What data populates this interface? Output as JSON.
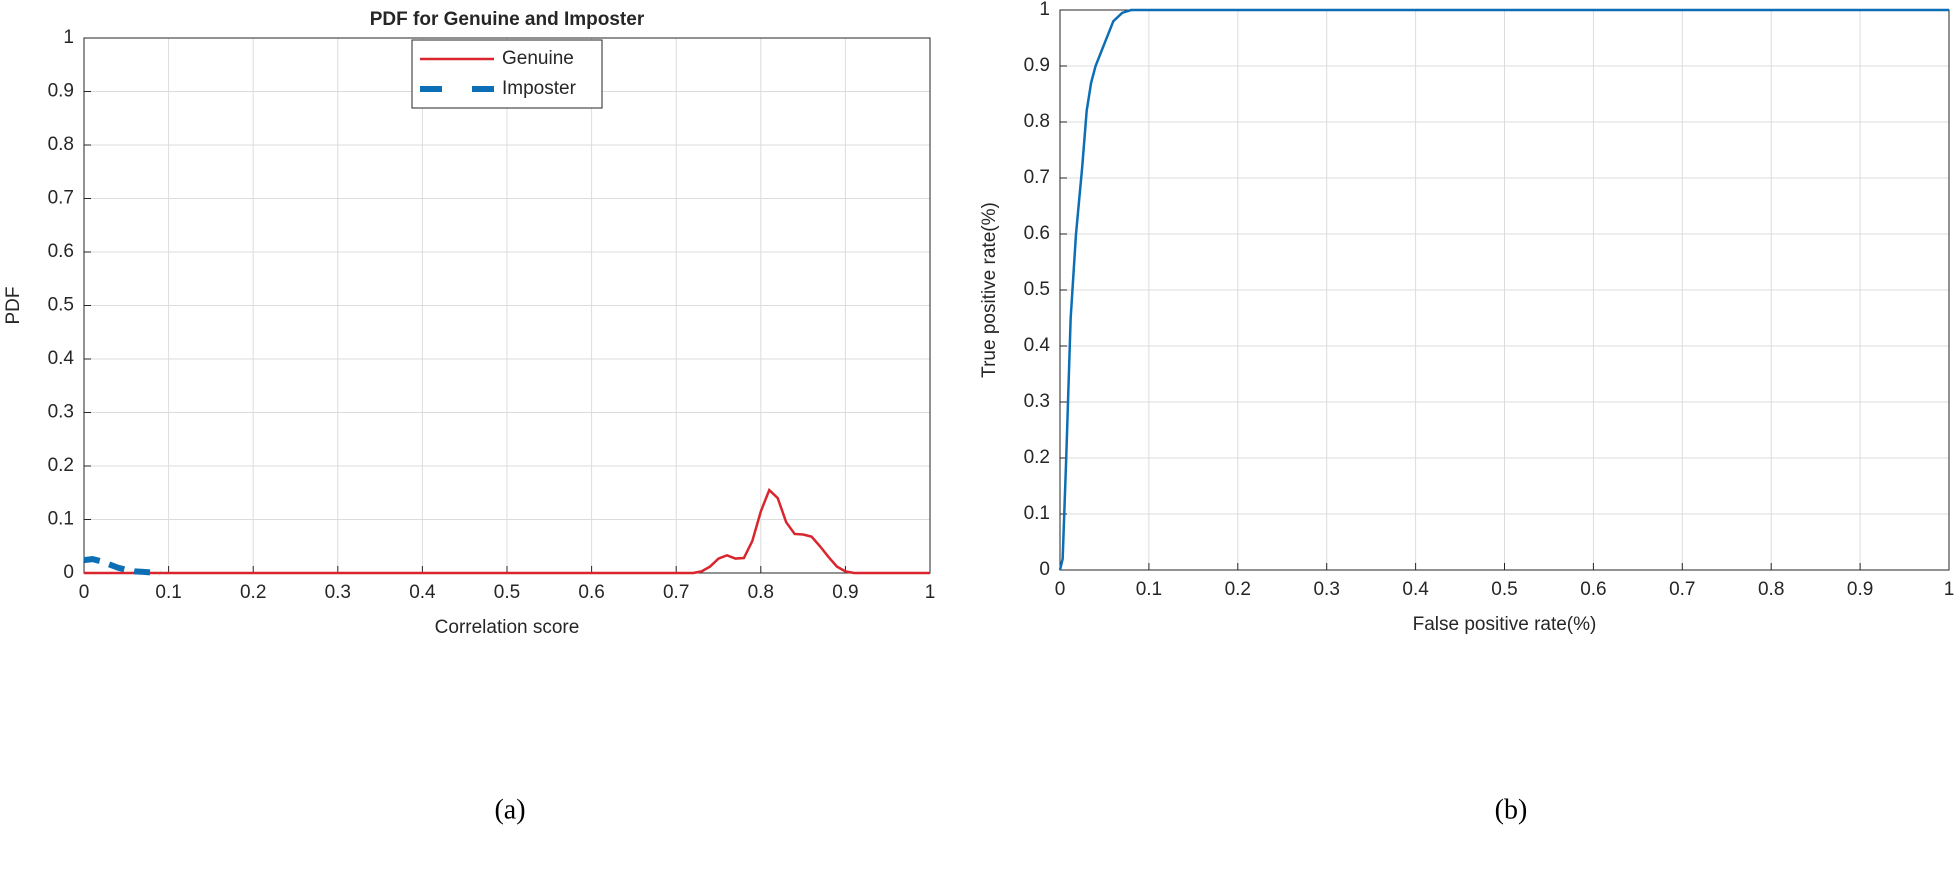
{
  "chart_data": [
    {
      "type": "line",
      "title": "PDF for Genuine and Imposter",
      "xlabel": "Correlation score",
      "ylabel": "PDF",
      "caption": "(a)",
      "xlim": [
        0,
        1
      ],
      "ylim": [
        0,
        1
      ],
      "xticks": [
        0,
        0.1,
        0.2,
        0.3,
        0.4,
        0.5,
        0.6,
        0.7,
        0.8,
        0.9,
        1
      ],
      "yticks": [
        0,
        0.1,
        0.2,
        0.3,
        0.4,
        0.5,
        0.6,
        0.7,
        0.8,
        0.9,
        1
      ],
      "grid": true,
      "legend": "north",
      "series": [
        {
          "name": "Genuine",
          "color": "#d9262e",
          "style": "solid",
          "x": [
            0,
            0.72,
            0.73,
            0.74,
            0.75,
            0.76,
            0.77,
            0.78,
            0.79,
            0.8,
            0.81,
            0.82,
            0.83,
            0.84,
            0.85,
            0.86,
            0.87,
            0.88,
            0.89,
            0.9,
            0.91,
            1
          ],
          "values": [
            0,
            0,
            0.003,
            0.012,
            0.027,
            0.033,
            0.027,
            0.028,
            0.06,
            0.115,
            0.155,
            0.14,
            0.095,
            0.073,
            0.072,
            0.068,
            0.05,
            0.03,
            0.012,
            0.003,
            0,
            0
          ]
        },
        {
          "name": "Imposter",
          "color": "#0c6fb5",
          "style": "dashed",
          "x": [
            0,
            0.01,
            0.02,
            0.03,
            0.04,
            0.05,
            0.06,
            0.07,
            0.08,
            0.09
          ],
          "values": [
            0.024,
            0.026,
            0.022,
            0.016,
            0.01,
            0.006,
            0.003,
            0.002,
            0.001,
            0
          ]
        }
      ]
    },
    {
      "type": "line",
      "xlabel": "False positive rate(%)",
      "ylabel": "True positive rate(%)",
      "caption": "(b)",
      "xlim": [
        0,
        1
      ],
      "ylim": [
        0,
        1
      ],
      "xticks": [
        0,
        0.1,
        0.2,
        0.3,
        0.4,
        0.5,
        0.6,
        0.7,
        0.8,
        0.9,
        1
      ],
      "yticks": [
        0,
        0.1,
        0.2,
        0.3,
        0.4,
        0.5,
        0.6,
        0.7,
        0.8,
        0.9,
        1
      ],
      "grid": true,
      "series": [
        {
          "color": "#0c6fb5",
          "style": "solid",
          "x": [
            0,
            0.003,
            0.007,
            0.012,
            0.018,
            0.025,
            0.03,
            0.035,
            0.04,
            0.05,
            0.06,
            0.07,
            0.08,
            0.1,
            1
          ],
          "values": [
            0,
            0.02,
            0.2,
            0.45,
            0.6,
            0.72,
            0.82,
            0.87,
            0.9,
            0.94,
            0.98,
            0.995,
            1,
            1,
            1
          ]
        }
      ]
    }
  ]
}
